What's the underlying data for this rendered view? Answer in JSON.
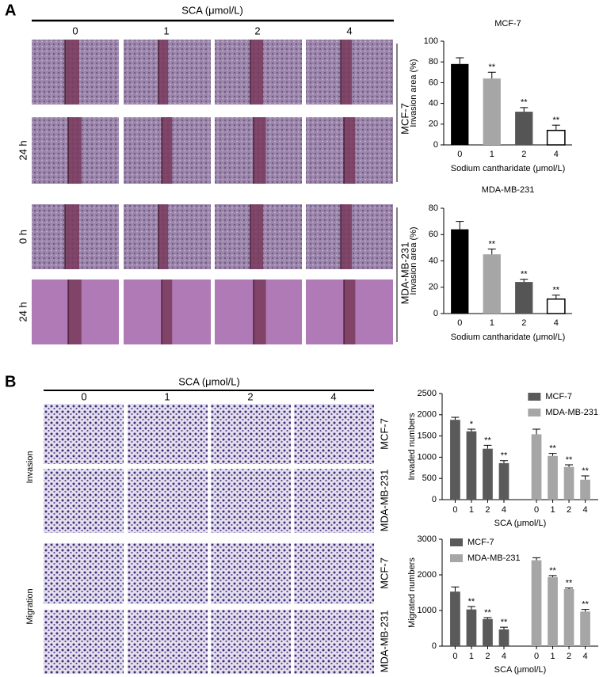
{
  "panels": {
    "A": {
      "label": "A",
      "header": "SCA (μmol/L)",
      "doses": [
        "0",
        "1",
        "2",
        "4"
      ],
      "times": [
        "0 h",
        "24 h"
      ],
      "cell_lines": [
        "MCF-7",
        "MDA-MB-231"
      ]
    },
    "B": {
      "label": "B",
      "header": "SCA (μmol/L)",
      "doses": [
        "0",
        "1",
        "2",
        "4"
      ],
      "assays": [
        "Invasion",
        "Migration"
      ],
      "cell_lines": [
        "MCF-7",
        "MDA-MB-231"
      ]
    }
  },
  "chart_data": [
    {
      "type": "bar",
      "title": "MCF-7",
      "ylabel": "Invasion area (%)",
      "xlabel": "Sodium cantharidate (μmol/L)",
      "categories": [
        "0",
        "1",
        "2",
        "4"
      ],
      "values": [
        78,
        64,
        32,
        14
      ],
      "errors": [
        6,
        6,
        4,
        5
      ],
      "significance": [
        null,
        "**",
        "**",
        "**"
      ],
      "colors": [
        "#000000",
        "#a6a6a6",
        "#555555",
        "#ffffff"
      ],
      "ylim": [
        0,
        100
      ],
      "yticks": [
        0,
        20,
        40,
        60,
        80,
        100
      ]
    },
    {
      "type": "bar",
      "title": "MDA-MB-231",
      "ylabel": "Invasion area (%)",
      "xlabel": "Sodium cantharidate (μmol/L)",
      "categories": [
        "0",
        "1",
        "2",
        "4"
      ],
      "values": [
        64,
        45,
        24,
        11
      ],
      "errors": [
        6,
        4,
        2,
        3
      ],
      "significance": [
        null,
        "**",
        "**",
        "**"
      ],
      "colors": [
        "#000000",
        "#a6a6a6",
        "#555555",
        "#ffffff"
      ],
      "ylim": [
        0,
        80
      ],
      "yticks": [
        0,
        20,
        40,
        60,
        80
      ]
    },
    {
      "type": "grouped-bar",
      "ylabel": "Invaded numbers",
      "xlabel": "SCA (μmol/L)",
      "categories": [
        "0",
        "1",
        "2",
        "4"
      ],
      "series": [
        {
          "name": "MCF-7",
          "color": "#5a5a5a",
          "values": [
            1880,
            1610,
            1200,
            860
          ],
          "errors": [
            60,
            50,
            80,
            60
          ],
          "significance": [
            null,
            "*",
            "**",
            "**"
          ]
        },
        {
          "name": "MDA-MB-231",
          "color": "#a6a6a6",
          "values": [
            1540,
            1030,
            770,
            470
          ],
          "errors": [
            120,
            60,
            50,
            90
          ],
          "significance": [
            null,
            "**",
            "**",
            "**"
          ]
        }
      ],
      "ylim": [
        0,
        2500
      ],
      "yticks": [
        0,
        500,
        1000,
        1500,
        2000,
        2500
      ],
      "legend": "upper right"
    },
    {
      "type": "grouped-bar",
      "ylabel": "Migrated numbers",
      "xlabel": "SCA (μmol/L)",
      "categories": [
        "0",
        "1",
        "2",
        "4"
      ],
      "series": [
        {
          "name": "MCF-7",
          "color": "#5a5a5a",
          "values": [
            1530,
            1030,
            760,
            470
          ],
          "errors": [
            130,
            80,
            40,
            60
          ],
          "significance": [
            null,
            "**",
            "**",
            "**"
          ]
        },
        {
          "name": "MDA-MB-231",
          "color": "#a6a6a6",
          "values": [
            2410,
            1940,
            1600,
            970
          ],
          "errors": [
            70,
            40,
            30,
            60
          ],
          "significance": [
            null,
            "**",
            "**",
            "**"
          ]
        }
      ],
      "ylim": [
        0,
        3000
      ],
      "yticks": [
        0,
        1000,
        2000,
        3000
      ],
      "legend": "upper left"
    }
  ]
}
